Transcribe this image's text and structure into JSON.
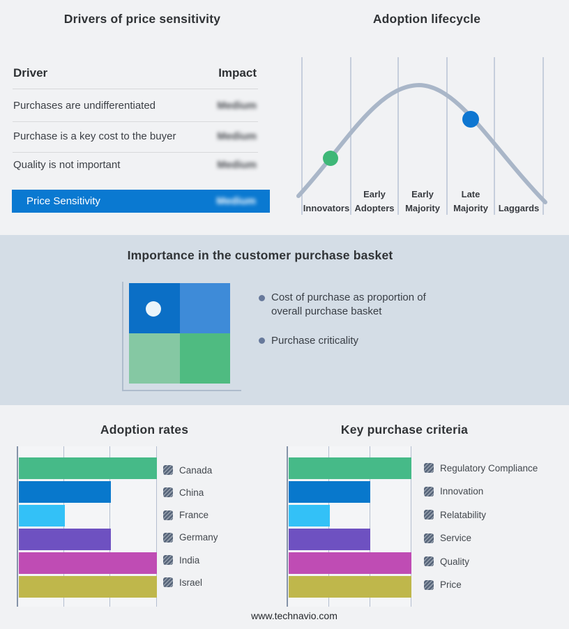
{
  "page": {
    "footer_url": "www.technavio.com",
    "background": "#f1f2f4",
    "band_background": "#d4dde6"
  },
  "drivers_table": {
    "title": "Drivers of price sensitivity",
    "col_driver": "Driver",
    "col_impact": "Impact",
    "rows": [
      {
        "driver": "Purchases are undifferentiated",
        "impact": "Medium"
      },
      {
        "driver": "Purchase is a key cost to the buyer",
        "impact": "Medium"
      },
      {
        "driver": "Quality is not important",
        "impact": "Medium"
      }
    ],
    "highlight": {
      "driver": "Price Sensitivity",
      "impact": "Medium",
      "row_color": "#0a79d1"
    },
    "impact_values_blurred": true
  },
  "lifecycle": {
    "title": "Adoption lifecycle",
    "stages": [
      "Innovators",
      "Early Adopters",
      "Early Majority",
      "Late Majority",
      "Laggards"
    ],
    "curve_color": "#a9b6c8",
    "gridline_color": "#b7c1d3",
    "markers": [
      {
        "on_stage": "Innovators",
        "position": "rising slope",
        "color": "#3eb777"
      },
      {
        "on_stage": "Late Majority",
        "position": "falling slope",
        "color": "#0e76d1"
      }
    ]
  },
  "purchase_basket": {
    "title": "Importance in the customer purchase basket",
    "bullets": [
      "Cost of purchase as proportion of overall purchase basket",
      "Purchase criticality"
    ],
    "matrix": {
      "top_left": "#0b6fc6",
      "top_right": "#3e8bd8",
      "bottom_left": "#85c8a3",
      "bottom_right": "#4fbb81",
      "dot_color": "#eaf4fa",
      "dot_quadrant": "top_left"
    }
  },
  "chart_data": [
    {
      "type": "bar",
      "orientation": "horizontal",
      "title": "Adoption rates",
      "categories": [
        "Canada",
        "China",
        "France",
        "Germany",
        "India",
        "Israel"
      ],
      "values": [
        3,
        2,
        1,
        2,
        3,
        3
      ],
      "colors": [
        "#46ba88",
        "#0878cc",
        "#33c1f7",
        "#6e51c1",
        "#bf4cb4",
        "#bfb74b"
      ],
      "xlim": [
        0,
        3
      ],
      "value_units": "gridline units (no numeric axis labels shown)",
      "gridlines": true,
      "legend_position": "right",
      "legend_swatch_style": "gray-hatched"
    },
    {
      "type": "bar",
      "orientation": "horizontal",
      "title": "Key purchase criteria",
      "categories": [
        "Regulatory Compliance",
        "Innovation",
        "Relatability",
        "Service",
        "Quality",
        "Price"
      ],
      "values": [
        3,
        2,
        1,
        2,
        3,
        3
      ],
      "colors": [
        "#46ba88",
        "#0878cc",
        "#33c1f7",
        "#6e51c1",
        "#bf4cb4",
        "#bfb74b"
      ],
      "xlim": [
        0,
        3
      ],
      "value_units": "gridline units (no numeric axis labels shown)",
      "gridlines": true,
      "legend_position": "right",
      "legend_swatch_style": "gray-hatched"
    },
    {
      "type": "line",
      "title": "Adoption lifecycle",
      "shape": "bell curve",
      "x_categories": [
        "Innovators",
        "Early Adopters",
        "Early Majority",
        "Late Majority",
        "Laggards"
      ],
      "y_axis": "none",
      "peak_over": "boundary of Early Majority / Late Majority",
      "markers": [
        {
          "x": "Innovators",
          "color": "#3eb777"
        },
        {
          "x": "Late Majority",
          "color": "#0e76d1"
        }
      ]
    }
  ]
}
